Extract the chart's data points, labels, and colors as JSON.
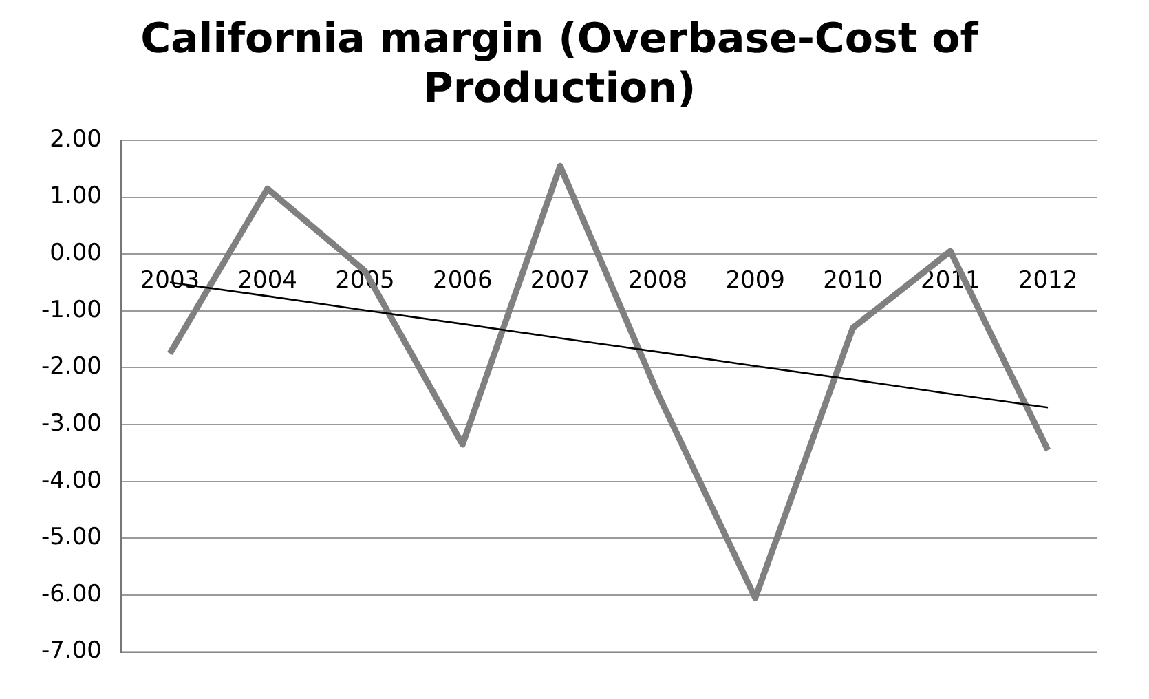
{
  "chart_data": {
    "type": "line",
    "title": [
      "California margin (Overbase-Cost of",
      "Production)"
    ],
    "categories": [
      "2003",
      "2004",
      "2005",
      "2006",
      "2007",
      "2008",
      "2009",
      "2010",
      "2011",
      "2012"
    ],
    "series": [
      {
        "color": "#808080",
        "values": [
          -1.75,
          1.15,
          -0.3,
          -3.35,
          1.55,
          -2.45,
          -6.05,
          -1.3,
          0.05,
          -3.45
        ]
      },
      {
        "type": "line",
        "color": "#000000",
        "values": [
          -0.5,
          -0.74,
          -0.99,
          -1.23,
          -1.48,
          -1.72,
          -1.97,
          -2.21,
          -2.46,
          -2.7
        ]
      }
    ],
    "ylim": [
      -7,
      2
    ],
    "yticks": [
      {
        "value": 2,
        "label": "2.00"
      },
      {
        "value": 1,
        "label": "1.00"
      },
      {
        "value": 0,
        "label": "0.00"
      },
      {
        "value": -1,
        "label": "-1.00"
      },
      {
        "value": -2,
        "label": "-2.00"
      },
      {
        "value": -3,
        "label": "-3.00"
      },
      {
        "value": -4,
        "label": "-4.00"
      },
      {
        "value": -5,
        "label": "-5.00"
      },
      {
        "value": -6,
        "label": "-6.00"
      },
      {
        "value": -7,
        "label": "-7.00"
      }
    ],
    "grid": "y",
    "legend": false,
    "marker": "none"
  }
}
